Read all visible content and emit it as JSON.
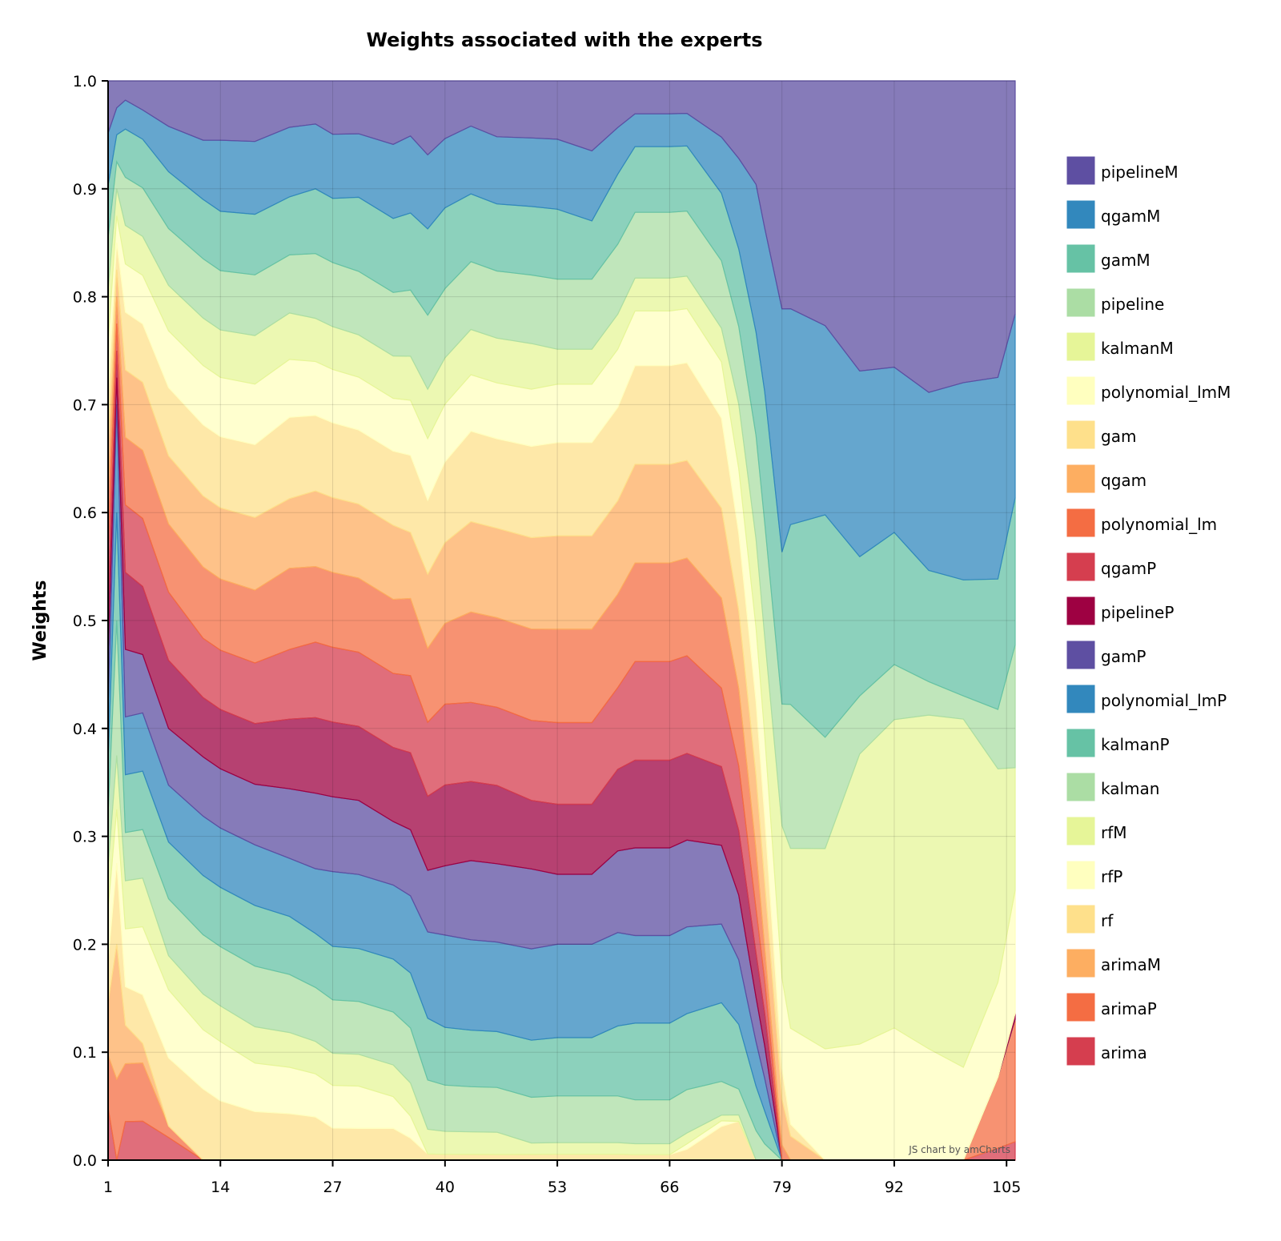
{
  "chart_data": {
    "type": "area",
    "stacked": true,
    "normalized": true,
    "title": "Weights associated with the experts",
    "ylabel": "Weights",
    "xlabel": "",
    "ylim": [
      0,
      1
    ],
    "xlim": [
      1,
      106
    ],
    "x_ticks": [
      1,
      14,
      27,
      40,
      53,
      66,
      79,
      92,
      105
    ],
    "y_ticks": [
      "0.0",
      "0.1",
      "0.2",
      "0.3",
      "0.4",
      "0.5",
      "0.6",
      "0.7",
      "0.8",
      "0.9",
      "1.0"
    ],
    "grid": true,
    "legend_position": "right",
    "credit": "JS chart by amCharts",
    "keyframes": [
      1,
      2,
      3,
      5,
      8,
      12,
      14,
      18,
      22,
      25,
      27,
      30,
      34,
      36,
      38,
      40,
      43,
      46,
      50,
      53,
      57,
      60,
      62,
      66,
      68,
      72,
      74,
      76,
      77,
      79,
      80,
      84,
      88,
      92,
      96,
      100,
      104,
      106
    ],
    "series": [
      {
        "name": "arima",
        "color": "#d53e4f",
        "values": [
          0.05,
          0.0,
          0.04,
          0.04,
          0.02,
          0.0,
          0.0,
          0.0,
          0.0,
          0.0,
          0.0,
          0.0,
          0.0,
          0.0,
          0.0,
          0.0,
          0.0,
          0.0,
          0.0,
          0.0,
          0.0,
          0.0,
          0.0,
          0.0,
          0.0,
          0.0,
          0.0,
          0.0,
          0.0,
          0.0,
          0.0,
          0.0,
          0.0,
          0.0,
          0.0,
          0.0,
          0.01,
          0.015
        ]
      },
      {
        "name": "arimaP",
        "color": "#f46d43",
        "values": [
          0.05,
          0.03,
          0.06,
          0.06,
          0.01,
          0.0,
          0.0,
          0.0,
          0.0,
          0.0,
          0.0,
          0.0,
          0.0,
          0.0,
          0.0,
          0.0,
          0.0,
          0.0,
          0.0,
          0.0,
          0.0,
          0.0,
          0.0,
          0.0,
          0.0,
          0.0,
          0.0,
          0.0,
          0.0,
          0.0,
          0.0,
          0.0,
          0.0,
          0.0,
          0.0,
          0.0,
          0.06,
          0.1
        ]
      },
      {
        "name": "arimaM",
        "color": "#fdae61",
        "values": [
          0.05,
          0.05,
          0.04,
          0.02,
          0.0,
          0.0,
          0.0,
          0.0,
          0.0,
          0.0,
          0.0,
          0.0,
          0.0,
          0.0,
          0.0,
          0.0,
          0.0,
          0.0,
          0.0,
          0.0,
          0.0,
          0.0,
          0.0,
          0.0,
          0.0,
          0.0,
          0.0,
          0.0,
          0.0,
          0.0,
          0.0,
          0.0,
          0.0,
          0.0,
          0.0,
          0.0,
          0.0,
          0.0
        ]
      },
      {
        "name": "rf",
        "color": "#fee08b",
        "values": [
          0.04,
          0.03,
          0.04,
          0.05,
          0.06,
          0.06,
          0.05,
          0.04,
          0.04,
          0.04,
          0.03,
          0.03,
          0.03,
          0.02,
          0.005,
          0.005,
          0.005,
          0.005,
          0.005,
          0.005,
          0.005,
          0.005,
          0.005,
          0.005,
          0.01,
          0.03,
          0.03,
          0.0,
          0.0,
          0.0,
          0.0,
          0.0,
          0.0,
          0.0,
          0.0,
          0.0,
          0.0,
          0.0
        ]
      },
      {
        "name": "rfP",
        "color": "#ffffbf",
        "values": [
          0.05,
          0.02,
          0.06,
          0.07,
          0.06,
          0.05,
          0.05,
          0.04,
          0.04,
          0.04,
          0.04,
          0.04,
          0.03,
          0.02,
          0.0,
          0.0,
          0.0,
          0.0,
          0.0,
          0.0,
          0.0,
          0.0,
          0.0,
          0.0,
          0.005,
          0.005,
          0.0,
          0.0,
          0.0,
          0.0,
          0.0,
          0.0,
          0.0,
          0.0,
          0.0,
          0.0,
          0.0,
          0.0
        ]
      },
      {
        "name": "rfM",
        "color": "#e6f598",
        "values": [
          0.04,
          0.02,
          0.05,
          0.05,
          0.03,
          0.03,
          0.03,
          0.03,
          0.03,
          0.03,
          0.03,
          0.03,
          0.03,
          0.03,
          0.02,
          0.02,
          0.02,
          0.02,
          0.01,
          0.01,
          0.01,
          0.01,
          0.01,
          0.01,
          0.01,
          0.005,
          0.005,
          0.0,
          0.0,
          0.0,
          0.0,
          0.0,
          0.0,
          0.0,
          0.0,
          0.0,
          0.0,
          0.0
        ]
      },
      {
        "name": "kalman",
        "color": "#abdda4",
        "values": [
          0.05,
          0.05,
          0.05,
          0.05,
          0.05,
          0.05,
          0.05,
          0.05,
          0.05,
          0.05,
          0.05,
          0.05,
          0.05,
          0.05,
          0.04,
          0.04,
          0.04,
          0.04,
          0.04,
          0.04,
          0.04,
          0.04,
          0.04,
          0.04,
          0.04,
          0.03,
          0.02,
          0.02,
          0.01,
          0.0,
          0.0,
          0.0,
          0.0,
          0.0,
          0.0,
          0.0,
          0.0,
          0.0
        ]
      },
      {
        "name": "kalmanP",
        "color": "#66c2a5",
        "values": [
          0.05,
          0.04,
          0.06,
          0.06,
          0.05,
          0.05,
          0.05,
          0.05,
          0.05,
          0.05,
          0.05,
          0.05,
          0.05,
          0.05,
          0.05,
          0.05,
          0.05,
          0.05,
          0.05,
          0.05,
          0.05,
          0.06,
          0.07,
          0.07,
          0.07,
          0.07,
          0.05,
          0.03,
          0.02,
          0.0,
          0.0,
          0.0,
          0.0,
          0.0,
          0.0,
          0.0,
          0.0,
          0.0
        ]
      },
      {
        "name": "polynomial_lmP",
        "color": "#3288bd",
        "values": [
          0.05,
          0.04,
          0.06,
          0.06,
          0.05,
          0.05,
          0.05,
          0.05,
          0.05,
          0.06,
          0.07,
          0.07,
          0.07,
          0.07,
          0.07,
          0.08,
          0.08,
          0.08,
          0.08,
          0.08,
          0.08,
          0.08,
          0.08,
          0.08,
          0.08,
          0.07,
          0.05,
          0.03,
          0.02,
          0.0,
          0.0,
          0.0,
          0.0,
          0.0,
          0.0,
          0.0,
          0.0,
          0.0
        ]
      },
      {
        "name": "gamP",
        "color": "#5e4fa2",
        "values": [
          0.05,
          0.01,
          0.07,
          0.06,
          0.05,
          0.05,
          0.05,
          0.05,
          0.06,
          0.07,
          0.07,
          0.07,
          0.06,
          0.06,
          0.05,
          0.06,
          0.07,
          0.07,
          0.07,
          0.06,
          0.06,
          0.07,
          0.08,
          0.08,
          0.08,
          0.07,
          0.05,
          0.03,
          0.02,
          0.0,
          0.0,
          0.0,
          0.0,
          0.0,
          0.0,
          0.0,
          0.0,
          0.0
        ]
      },
      {
        "name": "pipelineP",
        "color": "#9e0142",
        "values": [
          0.05,
          0.01,
          0.08,
          0.07,
          0.06,
          0.05,
          0.05,
          0.05,
          0.06,
          0.07,
          0.07,
          0.07,
          0.07,
          0.07,
          0.06,
          0.07,
          0.07,
          0.07,
          0.06,
          0.06,
          0.06,
          0.07,
          0.08,
          0.08,
          0.08,
          0.07,
          0.05,
          0.03,
          0.02,
          0.0,
          0.0,
          0.0,
          0.0,
          0.0,
          0.0,
          0.0,
          0.0,
          0.005
        ]
      },
      {
        "name": "qgamP",
        "color": "#d53e4f",
        "values": [
          0.05,
          0.01,
          0.07,
          0.07,
          0.06,
          0.05,
          0.05,
          0.05,
          0.06,
          0.07,
          0.07,
          0.07,
          0.07,
          0.07,
          0.06,
          0.07,
          0.07,
          0.07,
          0.07,
          0.07,
          0.07,
          0.07,
          0.09,
          0.09,
          0.09,
          0.07,
          0.05,
          0.03,
          0.02,
          0.0,
          0.0,
          0.0,
          0.0,
          0.0,
          0.0,
          0.0,
          0.0,
          0.0
        ]
      },
      {
        "name": "polynomial_lm",
        "color": "#f46d43",
        "values": [
          0.05,
          0.01,
          0.07,
          0.07,
          0.06,
          0.06,
          0.06,
          0.06,
          0.07,
          0.07,
          0.07,
          0.07,
          0.07,
          0.07,
          0.06,
          0.07,
          0.08,
          0.08,
          0.08,
          0.08,
          0.08,
          0.08,
          0.09,
          0.09,
          0.09,
          0.08,
          0.06,
          0.04,
          0.02,
          0.01,
          0.0,
          0.0,
          0.0,
          0.0,
          0.0,
          0.0,
          0.0,
          0.0
        ]
      },
      {
        "name": "qgam",
        "color": "#fdae61",
        "values": [
          0.05,
          0.01,
          0.07,
          0.07,
          0.06,
          0.06,
          0.06,
          0.06,
          0.06,
          0.07,
          0.07,
          0.07,
          0.07,
          0.06,
          0.06,
          0.07,
          0.08,
          0.08,
          0.08,
          0.08,
          0.08,
          0.08,
          0.09,
          0.09,
          0.09,
          0.08,
          0.06,
          0.05,
          0.04,
          0.03,
          0.02,
          0.0,
          0.0,
          0.0,
          0.0,
          0.0,
          0.0,
          0.0
        ]
      },
      {
        "name": "gam",
        "color": "#fee08b",
        "values": [
          0.05,
          0.01,
          0.06,
          0.06,
          0.06,
          0.06,
          0.06,
          0.06,
          0.07,
          0.07,
          0.07,
          0.07,
          0.07,
          0.07,
          0.06,
          0.07,
          0.08,
          0.08,
          0.08,
          0.08,
          0.08,
          0.08,
          0.09,
          0.09,
          0.09,
          0.08,
          0.06,
          0.05,
          0.04,
          0.02,
          0.01,
          0.0,
          0.0,
          0.0,
          0.0,
          0.0,
          0.0,
          0.0
        ]
      },
      {
        "name": "polynomial_lmM",
        "color": "#ffffbf",
        "values": [
          0.05,
          0.01,
          0.05,
          0.05,
          0.05,
          0.05,
          0.05,
          0.05,
          0.05,
          0.05,
          0.05,
          0.05,
          0.05,
          0.05,
          0.05,
          0.05,
          0.05,
          0.05,
          0.05,
          0.05,
          0.05,
          0.05,
          0.05,
          0.05,
          0.05,
          0.05,
          0.05,
          0.05,
          0.05,
          0.06,
          0.08,
          0.1,
          0.1,
          0.12,
          0.1,
          0.08,
          0.08,
          0.1
        ]
      },
      {
        "name": "kalmanM",
        "color": "#e6f598",
        "values": [
          0.05,
          0.01,
          0.04,
          0.04,
          0.04,
          0.04,
          0.04,
          0.04,
          0.04,
          0.04,
          0.04,
          0.04,
          0.04,
          0.04,
          0.04,
          0.04,
          0.04,
          0.04,
          0.04,
          0.03,
          0.03,
          0.03,
          0.03,
          0.03,
          0.03,
          0.03,
          0.05,
          0.06,
          0.06,
          0.1,
          0.15,
          0.18,
          0.25,
          0.28,
          0.3,
          0.3,
          0.18,
          0.1
        ]
      },
      {
        "name": "pipeline",
        "color": "#abdda4",
        "values": [
          0.05,
          0.01,
          0.05,
          0.05,
          0.05,
          0.05,
          0.05,
          0.05,
          0.05,
          0.06,
          0.06,
          0.06,
          0.06,
          0.06,
          0.06,
          0.06,
          0.06,
          0.06,
          0.06,
          0.06,
          0.06,
          0.06,
          0.06,
          0.06,
          0.06,
          0.06,
          0.06,
          0.07,
          0.07,
          0.08,
          0.12,
          0.1,
          0.05,
          0.05,
          0.03,
          0.02,
          0.05,
          0.1
        ]
      },
      {
        "name": "gamM",
        "color": "#66c2a5",
        "values": [
          0.05,
          0.01,
          0.05,
          0.05,
          0.05,
          0.05,
          0.05,
          0.05,
          0.05,
          0.06,
          0.06,
          0.07,
          0.07,
          0.07,
          0.07,
          0.07,
          0.06,
          0.06,
          0.06,
          0.06,
          0.05,
          0.06,
          0.06,
          0.06,
          0.06,
          0.06,
          0.06,
          0.07,
          0.08,
          0.1,
          0.15,
          0.2,
          0.12,
          0.12,
          0.1,
          0.1,
          0.11,
          0.12
        ]
      },
      {
        "name": "qgamM",
        "color": "#3288bd",
        "values": [
          0.05,
          0.01,
          0.03,
          0.03,
          0.04,
          0.05,
          0.06,
          0.06,
          0.06,
          0.06,
          0.06,
          0.06,
          0.07,
          0.07,
          0.06,
          0.06,
          0.06,
          0.06,
          0.06,
          0.06,
          0.06,
          0.04,
          0.03,
          0.03,
          0.03,
          0.05,
          0.07,
          0.1,
          0.1,
          0.16,
          0.18,
          0.17,
          0.16,
          0.15,
          0.16,
          0.17,
          0.17,
          0.15
        ]
      },
      {
        "name": "pipelineM",
        "color": "#5e4fa2",
        "values": [
          0.05,
          0.01,
          0.02,
          0.03,
          0.04,
          0.05,
          0.05,
          0.05,
          0.04,
          0.04,
          0.05,
          0.05,
          0.06,
          0.05,
          0.06,
          0.05,
          0.04,
          0.05,
          0.05,
          0.05,
          0.06,
          0.04,
          0.03,
          0.03,
          0.03,
          0.05,
          0.06,
          0.07,
          0.09,
          0.15,
          0.19,
          0.22,
          0.25,
          0.26,
          0.28,
          0.26,
          0.25,
          0.19
        ]
      }
    ]
  }
}
